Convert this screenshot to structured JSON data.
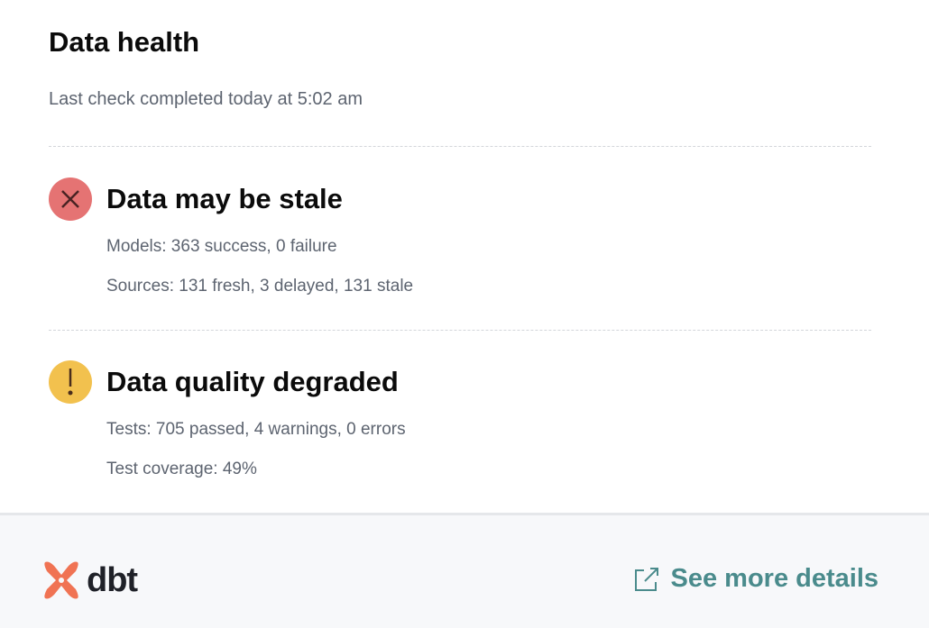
{
  "header": {
    "title": "Data health",
    "subtitle": "Last check completed today at 5:02 am"
  },
  "sections": [
    {
      "status": "error",
      "icon": "x-circle-icon",
      "color": "#e57373",
      "heading": "Data may be stale",
      "lines": [
        "Models: 363 success, 0 failure",
        "Sources: 131 fresh, 3 delayed, 131 stale"
      ]
    },
    {
      "status": "warning",
      "icon": "exclamation-circle-icon",
      "color": "#f2c14e",
      "heading": "Data quality degraded",
      "lines": [
        "Tests: 705 passed, 4 warnings, 0 errors",
        "Test coverage: 49%"
      ]
    }
  ],
  "footer": {
    "logo_text": "dbt",
    "link_label": "See more details",
    "link_color": "#4a8b8c",
    "logo_color": "#f07353"
  }
}
